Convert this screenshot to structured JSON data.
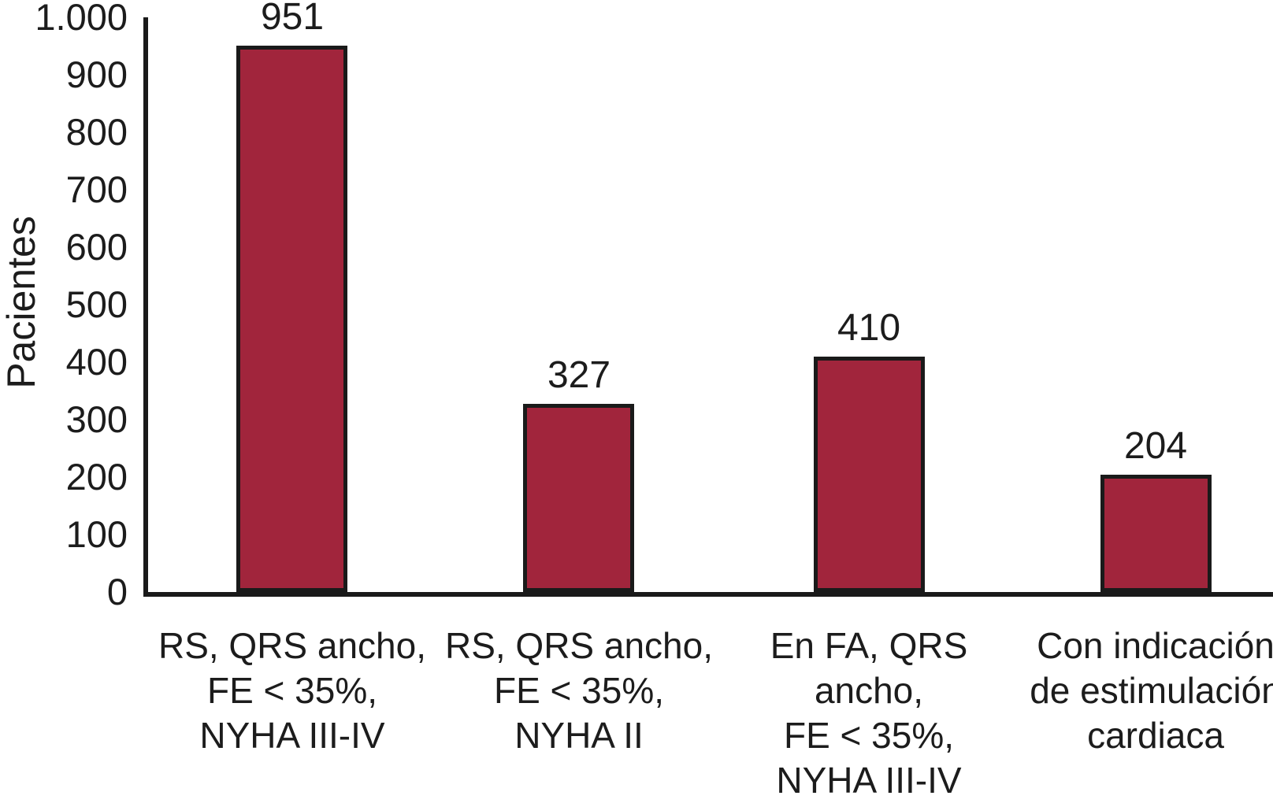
{
  "chart_data": {
    "type": "bar",
    "title": "",
    "xlabel": "",
    "ylabel": "Pacientes",
    "ylim": [
      0,
      1000
    ],
    "grid": false,
    "legend": "none",
    "bar_fill_color": "#A1253C",
    "bar_border_color": "#1A1A1A",
    "axis_color": "#1A1A1A",
    "text_color": "#1C1C1C",
    "background_color": "#FFFFFF",
    "yticks": [
      {
        "value": 0,
        "label": "0"
      },
      {
        "value": 100,
        "label": "100"
      },
      {
        "value": 200,
        "label": "200"
      },
      {
        "value": 300,
        "label": "300"
      },
      {
        "value": 400,
        "label": "400"
      },
      {
        "value": 500,
        "label": "500"
      },
      {
        "value": 600,
        "label": "600"
      },
      {
        "value": 700,
        "label": "700"
      },
      {
        "value": 800,
        "label": "800"
      },
      {
        "value": 900,
        "label": "900"
      },
      {
        "value": 1000,
        "label": "1.000"
      }
    ],
    "categories": [
      "RS, QRS ancho,\nFE < 35%,\nNYHA III-IV",
      "RS, QRS ancho,\nFE < 35%,\nNYHA II",
      "En FA, QRS ancho,\nFE < 35%,\nNYHA III-IV",
      "Con indicación\nde estimulación\ncardiaca"
    ],
    "values": [
      951,
      327,
      410,
      204
    ],
    "bars": [
      {
        "value": 951,
        "value_label": "951",
        "category_lines": [
          "RS, QRS ancho,",
          "FE < 35%,",
          "NYHA III-IV"
        ]
      },
      {
        "value": 327,
        "value_label": "327",
        "category_lines": [
          "RS, QRS ancho,",
          "FE < 35%,",
          "NYHA II"
        ]
      },
      {
        "value": 410,
        "value_label": "410",
        "category_lines": [
          "En FA, QRS ancho,",
          "FE < 35%,",
          "NYHA III-IV"
        ]
      },
      {
        "value": 204,
        "value_label": "204",
        "category_lines": [
          "Con indicación",
          "de estimulación",
          "cardiaca"
        ]
      }
    ]
  }
}
